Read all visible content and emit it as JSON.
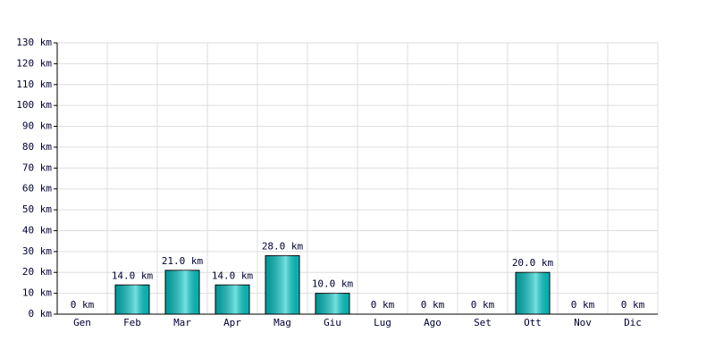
{
  "chart_data": {
    "type": "bar",
    "categories": [
      "Gen",
      "Feb",
      "Mar",
      "Apr",
      "Mag",
      "Giu",
      "Lug",
      "Ago",
      "Set",
      "Ott",
      "Nov",
      "Dic"
    ],
    "values": [
      0,
      14,
      21,
      14,
      28,
      10,
      0,
      0,
      0,
      20,
      0,
      0
    ],
    "value_labels": [
      "0 km",
      "14.0 km",
      "21.0 km",
      "14.0 km",
      "28.0 km",
      "10.0 km",
      "0 km",
      "0 km",
      "0 km",
      "20.0 km",
      "0 km",
      "0 km"
    ],
    "color": "#00c8c8",
    "ylim": [
      0,
      130
    ],
    "yticks": [
      {
        "value": 0,
        "label": "0 km"
      },
      {
        "value": 10,
        "label": "10 km"
      },
      {
        "value": 20,
        "label": "20 km"
      },
      {
        "value": 30,
        "label": "30 km"
      },
      {
        "value": 40,
        "label": "40 km"
      },
      {
        "value": 50,
        "label": "50 km"
      },
      {
        "value": 60,
        "label": "60 km"
      },
      {
        "value": 70,
        "label": "70 km"
      },
      {
        "value": 80,
        "label": "80 km"
      },
      {
        "value": 90,
        "label": "90 km"
      },
      {
        "value": 100,
        "label": "100 km"
      },
      {
        "value": 110,
        "label": "110 km"
      },
      {
        "value": 120,
        "label": "120 km"
      },
      {
        "value": 130,
        "label": "130 km"
      }
    ],
    "grid": true
  }
}
